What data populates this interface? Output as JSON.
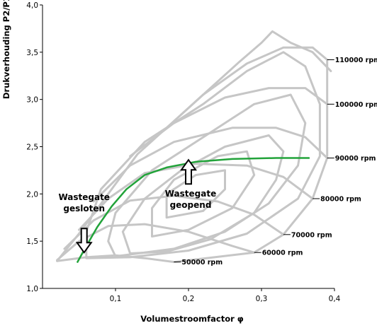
{
  "chart_data": {
    "type": "line",
    "title": "",
    "xlabel": "Volumestroomfactor φ",
    "ylabel": "Drukverhouding P2/P1",
    "xlim": [
      0.0,
      0.4
    ],
    "ylim": [
      1.0,
      4.0
    ],
    "x_ticks": [
      "0,1",
      "0,2",
      "0,3",
      "0,4"
    ],
    "y_ticks": [
      "1,0",
      "1,5",
      "2,0",
      "2,5",
      "3,0",
      "3,5",
      "4,0"
    ],
    "grid": false,
    "speed_lines": [
      {
        "label": "50000 rpm",
        "points": [
          [
            0.02,
            1.29
          ],
          [
            0.06,
            1.33
          ],
          [
            0.1,
            1.35
          ],
          [
            0.14,
            1.32
          ],
          [
            0.18,
            1.28
          ]
        ]
      },
      {
        "label": "60000 rpm",
        "points": [
          [
            0.02,
            1.3
          ],
          [
            0.05,
            1.5
          ],
          [
            0.09,
            1.66
          ],
          [
            0.14,
            1.68
          ],
          [
            0.2,
            1.6
          ],
          [
            0.26,
            1.45
          ],
          [
            0.29,
            1.38
          ]
        ]
      },
      {
        "label": "70000 rpm",
        "points": [
          [
            0.03,
            1.42
          ],
          [
            0.07,
            1.72
          ],
          [
            0.12,
            1.93
          ],
          [
            0.18,
            1.98
          ],
          [
            0.24,
            1.92
          ],
          [
            0.29,
            1.78
          ],
          [
            0.33,
            1.57
          ]
        ]
      },
      {
        "label": "80000 rpm",
        "points": [
          [
            0.05,
            1.62
          ],
          [
            0.09,
            1.95
          ],
          [
            0.14,
            2.22
          ],
          [
            0.21,
            2.32
          ],
          [
            0.28,
            2.3
          ],
          [
            0.33,
            2.18
          ],
          [
            0.37,
            1.95
          ]
        ]
      },
      {
        "label": "90000 rpm",
        "points": [
          [
            0.07,
            1.92
          ],
          [
            0.12,
            2.3
          ],
          [
            0.18,
            2.55
          ],
          [
            0.26,
            2.7
          ],
          [
            0.32,
            2.7
          ],
          [
            0.36,
            2.6
          ],
          [
            0.39,
            2.38
          ]
        ]
      },
      {
        "label": "100000 rpm",
        "points": [
          [
            0.12,
            2.4
          ],
          [
            0.18,
            2.75
          ],
          [
            0.25,
            3.02
          ],
          [
            0.31,
            3.12
          ],
          [
            0.36,
            3.12
          ],
          [
            0.39,
            2.95
          ]
        ]
      },
      {
        "label": "110000 rpm",
        "points": [
          [
            0.17,
            2.7
          ],
          [
            0.22,
            3.05
          ],
          [
            0.28,
            3.38
          ],
          [
            0.33,
            3.55
          ],
          [
            0.37,
            3.55
          ],
          [
            0.39,
            3.42
          ]
        ]
      }
    ],
    "surge_line": {
      "label": "",
      "points": [
        [
          0.02,
          1.29
        ],
        [
          0.05,
          1.58
        ],
        [
          0.09,
          2.0
        ],
        [
          0.13,
          2.42
        ],
        [
          0.17,
          2.7
        ],
        [
          0.22,
          3.05
        ],
        [
          0.27,
          3.4
        ],
        [
          0.3,
          3.6
        ],
        [
          0.315,
          3.72
        ],
        [
          0.34,
          3.6
        ],
        [
          0.37,
          3.5
        ],
        [
          0.395,
          3.3
        ]
      ]
    },
    "choke_line": {
      "label": "",
      "points": [
        [
          0.18,
          1.28
        ],
        [
          0.29,
          1.38
        ],
        [
          0.33,
          1.57
        ],
        [
          0.37,
          1.95
        ],
        [
          0.39,
          2.38
        ],
        [
          0.39,
          2.95
        ],
        [
          0.39,
          3.42
        ]
      ]
    },
    "efficiency_islands": [
      {
        "points": [
          [
            0.06,
            1.32
          ],
          [
            0.12,
            1.33
          ],
          [
            0.2,
            1.4
          ],
          [
            0.28,
            1.58
          ],
          [
            0.35,
            1.95
          ],
          [
            0.38,
            2.4
          ],
          [
            0.38,
            2.95
          ],
          [
            0.36,
            3.35
          ],
          [
            0.33,
            3.5
          ],
          [
            0.28,
            3.3
          ],
          [
            0.22,
            2.95
          ],
          [
            0.14,
            2.55
          ],
          [
            0.08,
            2.05
          ],
          [
            0.06,
            1.6
          ],
          [
            0.06,
            1.32
          ]
        ]
      },
      {
        "points": [
          [
            0.1,
            1.34
          ],
          [
            0.18,
            1.42
          ],
          [
            0.25,
            1.6
          ],
          [
            0.31,
            1.9
          ],
          [
            0.35,
            2.3
          ],
          [
            0.36,
            2.75
          ],
          [
            0.34,
            3.05
          ],
          [
            0.29,
            2.95
          ],
          [
            0.23,
            2.65
          ],
          [
            0.15,
            2.25
          ],
          [
            0.1,
            1.8
          ],
          [
            0.09,
            1.5
          ],
          [
            0.1,
            1.34
          ]
        ]
      },
      {
        "points": [
          [
            0.12,
            1.37
          ],
          [
            0.17,
            1.39
          ],
          [
            0.23,
            1.52
          ],
          [
            0.29,
            1.8
          ],
          [
            0.32,
            2.15
          ],
          [
            0.33,
            2.45
          ],
          [
            0.31,
            2.62
          ],
          [
            0.25,
            2.5
          ],
          [
            0.19,
            2.25
          ],
          [
            0.14,
            1.95
          ],
          [
            0.11,
            1.6
          ],
          [
            0.12,
            1.37
          ]
        ]
      },
      {
        "points": [
          [
            0.15,
            1.55
          ],
          [
            0.2,
            1.62
          ],
          [
            0.26,
            1.85
          ],
          [
            0.29,
            2.2
          ],
          [
            0.28,
            2.45
          ],
          [
            0.24,
            2.4
          ],
          [
            0.18,
            2.15
          ],
          [
            0.15,
            1.85
          ],
          [
            0.15,
            1.55
          ]
        ]
      },
      {
        "points": [
          [
            0.17,
            1.75
          ],
          [
            0.22,
            1.82
          ],
          [
            0.25,
            2.05
          ],
          [
            0.25,
            2.25
          ],
          [
            0.21,
            2.2
          ],
          [
            0.17,
            2.0
          ],
          [
            0.17,
            1.75
          ]
        ]
      }
    ],
    "operating_line": {
      "color": "#22a33a",
      "points": [
        [
          0.048,
          1.28
        ],
        [
          0.058,
          1.42
        ],
        [
          0.075,
          1.65
        ],
        [
          0.095,
          1.87
        ],
        [
          0.115,
          2.05
        ],
        [
          0.14,
          2.2
        ],
        [
          0.17,
          2.28
        ],
        [
          0.21,
          2.34
        ],
        [
          0.26,
          2.37
        ],
        [
          0.32,
          2.38
        ],
        [
          0.365,
          2.38
        ]
      ]
    },
    "annotations": [
      {
        "text_lines": [
          "Wastegate",
          "gesloten"
        ],
        "arrow": "down",
        "target": [
          0.057,
          1.38
        ]
      },
      {
        "text_lines": [
          "Wastegate",
          "geopend"
        ],
        "arrow": "up",
        "target": [
          0.2,
          2.36
        ]
      }
    ],
    "colors": {
      "speed_lines": "#c6c6c6",
      "operating_line": "#22a33a",
      "text": "#000000"
    }
  }
}
